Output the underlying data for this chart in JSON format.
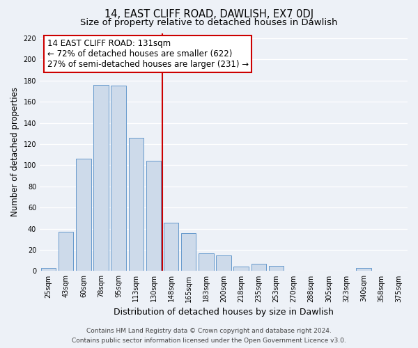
{
  "title": "14, EAST CLIFF ROAD, DAWLISH, EX7 0DJ",
  "subtitle": "Size of property relative to detached houses in Dawlish",
  "xlabel": "Distribution of detached houses by size in Dawlish",
  "ylabel": "Number of detached properties",
  "bar_labels": [
    "25sqm",
    "43sqm",
    "60sqm",
    "78sqm",
    "95sqm",
    "113sqm",
    "130sqm",
    "148sqm",
    "165sqm",
    "183sqm",
    "200sqm",
    "218sqm",
    "235sqm",
    "253sqm",
    "270sqm",
    "288sqm",
    "305sqm",
    "323sqm",
    "340sqm",
    "358sqm",
    "375sqm"
  ],
  "bar_values": [
    3,
    37,
    106,
    176,
    175,
    126,
    104,
    46,
    36,
    17,
    15,
    4,
    7,
    5,
    0,
    0,
    0,
    0,
    3,
    0,
    0
  ],
  "bar_color": "#cddaea",
  "bar_edge_color": "#6699cc",
  "highlight_line_color": "#cc0000",
  "annotation_line1": "14 EAST CLIFF ROAD: 131sqm",
  "annotation_line2": "← 72% of detached houses are smaller (622)",
  "annotation_line3": "27% of semi-detached houses are larger (231) →",
  "annotation_box_color": "#ffffff",
  "annotation_box_edge_color": "#cc0000",
  "ylim": [
    0,
    225
  ],
  "yticks": [
    0,
    20,
    40,
    60,
    80,
    100,
    120,
    140,
    160,
    180,
    200,
    220
  ],
  "footer_line1": "Contains HM Land Registry data © Crown copyright and database right 2024.",
  "footer_line2": "Contains public sector information licensed under the Open Government Licence v3.0.",
  "background_color": "#edf1f7",
  "grid_color": "#ffffff",
  "title_fontsize": 10.5,
  "subtitle_fontsize": 9.5,
  "ylabel_fontsize": 8.5,
  "xlabel_fontsize": 9,
  "tick_fontsize": 7,
  "annotation_fontsize": 8.5,
  "footer_fontsize": 6.5
}
